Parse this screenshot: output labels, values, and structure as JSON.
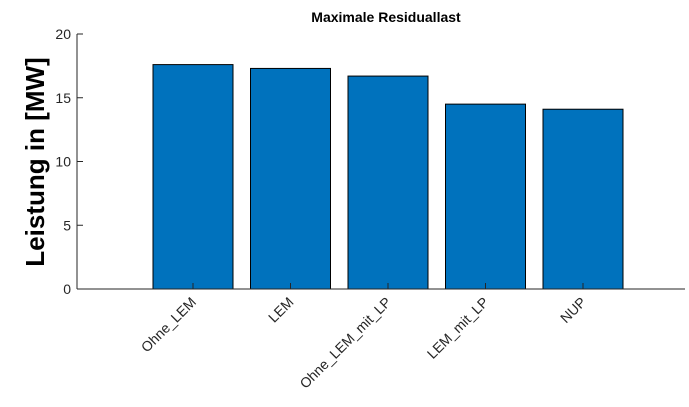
{
  "chart_data": {
    "type": "bar",
    "title": "Maximale Residuallast",
    "ylabel": "Leistung in [MW]",
    "categories": [
      "Ohne_LEM",
      "LEM",
      "Ohne_LEM_mit_LP",
      "LEM_mit_LP",
      "NUP"
    ],
    "values": [
      17.6,
      17.3,
      16.7,
      14.5,
      14.1
    ],
    "color": "#0072bd",
    "ylim": [
      0,
      20
    ],
    "yticks": [
      0,
      5,
      10,
      15,
      20
    ],
    "grid": false
  }
}
